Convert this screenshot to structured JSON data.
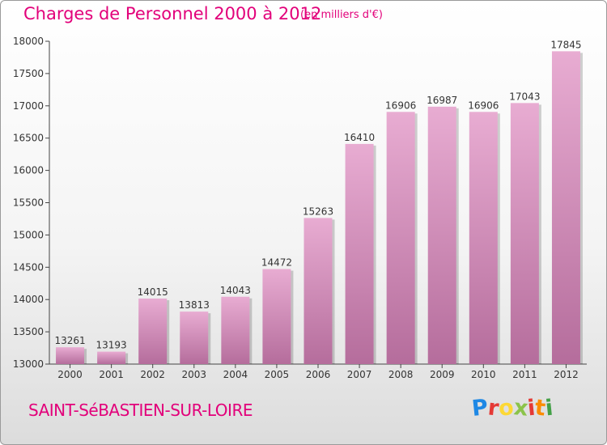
{
  "header": {
    "title": "Charges de Personnel 2000 à 2012",
    "subtitle": "(en milliers d'€)"
  },
  "footer": {
    "city": "SAINT-SéBASTIEN-SUR-LOIRE",
    "logo_text": "Proxiti"
  },
  "colors": {
    "title": "#e2007a",
    "bar_light": "#e8acd2",
    "bar_dark": "#b56d9c",
    "axis": "#444444"
  },
  "chart_data": {
    "type": "bar",
    "title": "Charges de Personnel 2000 à 2012",
    "subtitle": "(en milliers d'€)",
    "xlabel": "",
    "ylabel": "",
    "categories": [
      "2000",
      "2001",
      "2002",
      "2003",
      "2004",
      "2005",
      "2006",
      "2007",
      "2008",
      "2009",
      "2010",
      "2011",
      "2012"
    ],
    "values": [
      13261,
      13193,
      14015,
      13813,
      14043,
      14472,
      15263,
      16410,
      16906,
      16987,
      16906,
      17043,
      17845
    ],
    "ylim": [
      13000,
      18000
    ],
    "yticks": [
      13000,
      13500,
      14000,
      14500,
      15000,
      15500,
      16000,
      16500,
      17000,
      17500,
      18000
    ],
    "grid": false,
    "data_labels": true
  }
}
